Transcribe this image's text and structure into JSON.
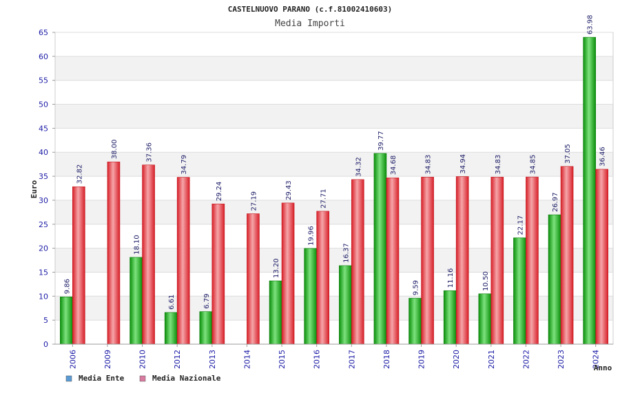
{
  "chart_data": {
    "type": "bar",
    "title": "CASTELNUOVO PARANO (c.f.81002410603)",
    "subtitle": "Media Importi",
    "xlabel": "Anno",
    "ylabel": "Euro",
    "ylim": [
      0,
      65
    ],
    "yticks": [
      0,
      5,
      10,
      15,
      20,
      25,
      30,
      35,
      40,
      45,
      50,
      55,
      60,
      65
    ],
    "grid": true,
    "legend_position": "bottom-left",
    "categories": [
      "2006",
      "2009",
      "2010",
      "2012",
      "2013",
      "2014",
      "2015",
      "2016",
      "2017",
      "2018",
      "2019",
      "2020",
      "2021",
      "2022",
      "2023",
      "2024"
    ],
    "series": [
      {
        "name": "Media Ente",
        "legend_color": "#5b9bd5",
        "bar_color": "#11a811",
        "values": [
          9.86,
          null,
          18.1,
          6.61,
          6.79,
          null,
          13.2,
          19.96,
          16.37,
          39.77,
          9.59,
          11.16,
          10.5,
          22.17,
          26.97,
          63.98
        ],
        "labels": [
          "9.86",
          "",
          "18.10",
          "6.61",
          "6.79",
          "",
          "13.20",
          "19.96",
          "16.37",
          "39.77",
          "9.59",
          "11.16",
          "10.50",
          "22.17",
          "26.97",
          "63.98"
        ]
      },
      {
        "name": "Media Nazionale",
        "legend_color": "#d97ba0",
        "bar_color": "#e0262e",
        "values": [
          32.82,
          38.0,
          37.36,
          34.79,
          29.24,
          27.19,
          29.43,
          27.71,
          34.32,
          34.68,
          34.83,
          34.94,
          34.83,
          34.85,
          37.05,
          36.46
        ],
        "labels": [
          "32.82",
          "38.00",
          "37.36",
          "34.79",
          "29.24",
          "27.19",
          "29.43",
          "27.71",
          "34.32",
          "34.68",
          "34.83",
          "34.94",
          "34.83",
          "34.85",
          "37.05",
          "36.46"
        ]
      }
    ]
  }
}
